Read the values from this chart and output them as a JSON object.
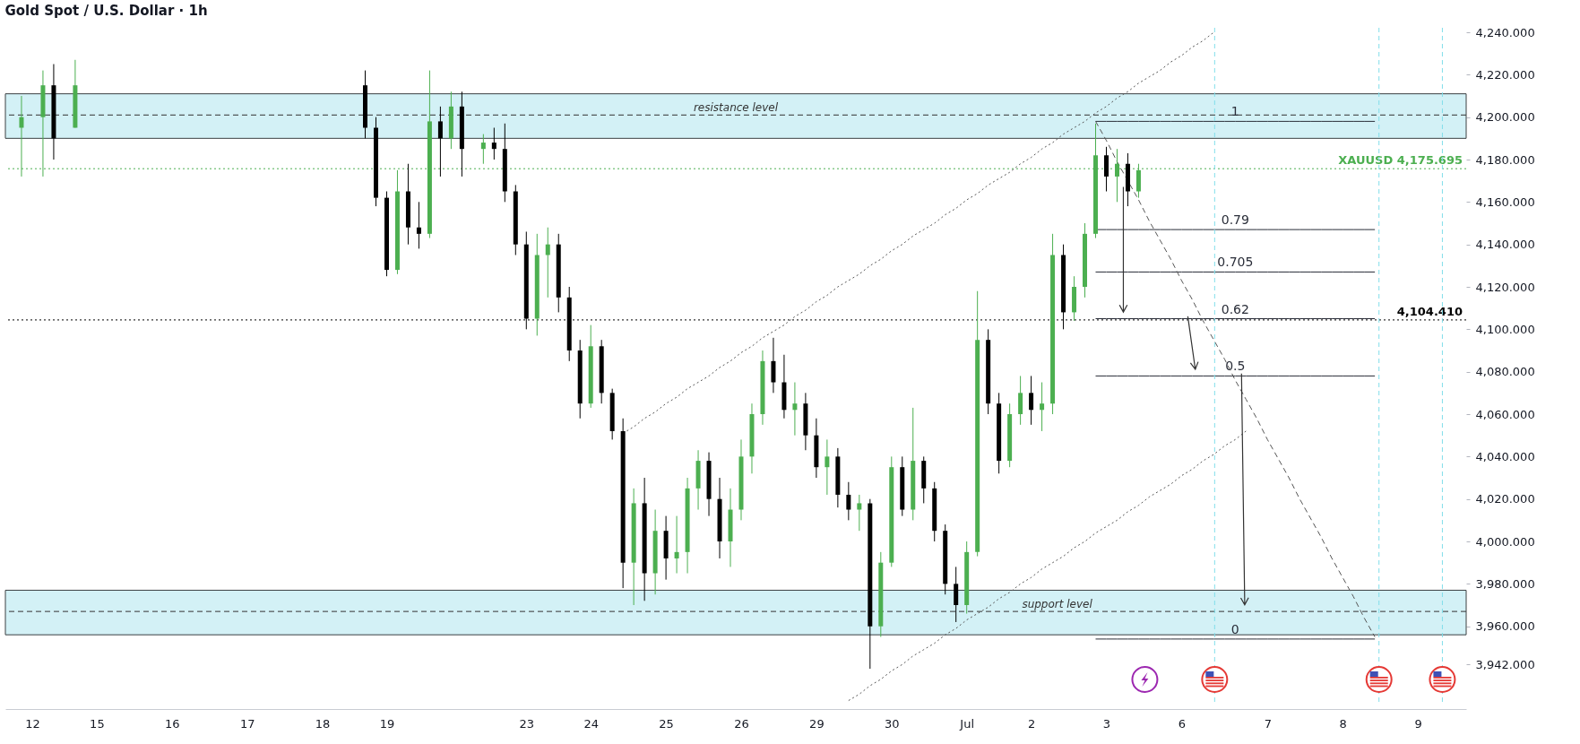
{
  "chart_data": {
    "type": "candlestick",
    "title": "Gold Spot / U.S. Dollar · 1h",
    "ylim": [
      3921,
      4240
    ],
    "yticks": [
      {
        "value": 3942,
        "label": "3,942.000"
      },
      {
        "value": 3960,
        "label": "3,960.000"
      },
      {
        "value": 3980,
        "label": "3,980.000"
      },
      {
        "value": 4000,
        "label": "4,000.000"
      },
      {
        "value": 4020,
        "label": "4,020.000"
      },
      {
        "value": 4040,
        "label": "4,040.000"
      },
      {
        "value": 4060,
        "label": "4,060.000"
      },
      {
        "value": 4080,
        "label": "4,080.000"
      },
      {
        "value": 4100,
        "label": "4,100.000"
      },
      {
        "value": 4120,
        "label": "4,120.000"
      },
      {
        "value": 4140,
        "label": "4,140.000"
      },
      {
        "value": 4160,
        "label": "4,160.000"
      },
      {
        "value": 4180,
        "label": "4,180.000"
      },
      {
        "value": 4200,
        "label": "4,200.000"
      },
      {
        "value": 4220,
        "label": "4,220.000"
      },
      {
        "value": 4240,
        "label": "4,240.000"
      }
    ],
    "categories": [
      null,
      null,
      "12",
      null,
      null,
      null,
      null,
      null,
      "15",
      null,
      null,
      null,
      null,
      null,
      null,
      "16",
      null,
      null,
      null,
      null,
      null,
      null,
      "17",
      null,
      null,
      null,
      null,
      null,
      null,
      "18",
      null,
      null,
      null,
      null,
      null,
      "19",
      null,
      null,
      null,
      null,
      null,
      null,
      null,
      null,
      null,
      null,
      null,
      null,
      "23",
      null,
      null,
      null,
      null,
      null,
      "24",
      null,
      null,
      null,
      null,
      null,
      null,
      "25",
      null,
      null,
      null,
      null,
      null,
      null,
      "26",
      null,
      null,
      null,
      null,
      null,
      null,
      "29",
      null,
      null,
      null,
      null,
      null,
      null,
      "30",
      null,
      null,
      null,
      null,
      null,
      null,
      "Jul",
      null,
      null,
      null,
      null,
      null,
      "2",
      null,
      null,
      null,
      null,
      null,
      null,
      "3",
      null,
      null,
      null,
      null,
      null,
      null,
      "6",
      null,
      null,
      null,
      null,
      null,
      null,
      null,
      "7",
      null,
      null,
      null,
      null,
      null,
      null,
      "8",
      null,
      null,
      null,
      null,
      null,
      null,
      "9",
      null,
      null,
      null,
      null
    ],
    "ohlc": [
      null,
      [
        4195,
        4210,
        4172,
        4200
      ],
      null,
      [
        4200,
        4222,
        4172,
        4215
      ],
      [
        4215,
        4225,
        4180,
        4190
      ],
      null,
      [
        4195,
        4227,
        4195,
        4215
      ],
      null,
      null,
      null,
      null,
      null,
      null,
      null,
      null,
      null,
      null,
      null,
      null,
      null,
      null,
      null,
      null,
      null,
      null,
      null,
      null,
      null,
      null,
      null,
      null,
      null,
      null,
      [
        4215,
        4222,
        4190,
        4195
      ],
      [
        4195,
        4200,
        4158,
        4162
      ],
      [
        4162,
        4165,
        4125,
        4128
      ],
      [
        4128,
        4175,
        4126,
        4165
      ],
      [
        4165,
        4178,
        4140,
        4148
      ],
      [
        4148,
        4160,
        4138,
        4145
      ],
      [
        4145,
        4222,
        4143,
        4198
      ],
      [
        4198,
        4205,
        4172,
        4190
      ],
      [
        4190,
        4212,
        4185,
        4205
      ],
      [
        4205,
        4212,
        4172,
        4185
      ],
      null,
      [
        4185,
        4192,
        4178,
        4188
      ],
      [
        4188,
        4195,
        4180,
        4185
      ],
      [
        4185,
        4197,
        4160,
        4165
      ],
      [
        4165,
        4168,
        4135,
        4140
      ],
      [
        4140,
        4146,
        4100,
        4105
      ],
      [
        4105,
        4145,
        4097,
        4135
      ],
      [
        4135,
        4148,
        4115,
        4140
      ],
      [
        4140,
        4145,
        4108,
        4115
      ],
      [
        4115,
        4120,
        4085,
        4090
      ],
      [
        4090,
        4095,
        4058,
        4065
      ],
      [
        4065,
        4102,
        4063,
        4092
      ],
      [
        4092,
        4095,
        4065,
        4070
      ],
      [
        4070,
        4072,
        4048,
        4052
      ],
      [
        4052,
        4058,
        3978,
        3990
      ],
      [
        3990,
        4025,
        3970,
        4018
      ],
      [
        4018,
        4030,
        3972,
        3985
      ],
      [
        3985,
        4015,
        3975,
        4005
      ],
      [
        4005,
        4012,
        3982,
        3992
      ],
      [
        3992,
        4012,
        3985,
        3995
      ],
      [
        3995,
        4030,
        3985,
        4025
      ],
      [
        4025,
        4043,
        4015,
        4038
      ],
      [
        4038,
        4042,
        4012,
        4020
      ],
      [
        4020,
        4030,
        3992,
        4000
      ],
      [
        4000,
        4025,
        3988,
        4015
      ],
      [
        4015,
        4048,
        4010,
        4040
      ],
      [
        4040,
        4065,
        4032,
        4060
      ],
      [
        4060,
        4090,
        4055,
        4085
      ],
      [
        4085,
        4096,
        4070,
        4075
      ],
      [
        4075,
        4088,
        4058,
        4062
      ],
      [
        4062,
        4075,
        4050,
        4065
      ],
      [
        4065,
        4070,
        4043,
        4050
      ],
      [
        4050,
        4058,
        4030,
        4035
      ],
      [
        4035,
        4048,
        4022,
        4040
      ],
      [
        4040,
        4044,
        4016,
        4022
      ],
      [
        4022,
        4028,
        4010,
        4015
      ],
      [
        4015,
        4022,
        4005,
        4018
      ],
      [
        4018,
        4020,
        3940,
        3960
      ],
      [
        3960,
        3995,
        3955,
        3990
      ],
      [
        3990,
        4040,
        3988,
        4035
      ],
      [
        4035,
        4040,
        4012,
        4015
      ],
      [
        4015,
        4063,
        4010,
        4038
      ],
      [
        4038,
        4040,
        4018,
        4025
      ],
      [
        4025,
        4028,
        4000,
        4005
      ],
      [
        4005,
        4008,
        3975,
        3980
      ],
      [
        3980,
        3988,
        3962,
        3970
      ],
      [
        3970,
        4000,
        3966,
        3995
      ],
      [
        3995,
        4118,
        3993,
        4095
      ],
      [
        4095,
        4100,
        4060,
        4065
      ],
      [
        4065,
        4070,
        4032,
        4038
      ],
      [
        4038,
        4065,
        4035,
        4060
      ],
      [
        4060,
        4078,
        4055,
        4070
      ],
      [
        4070,
        4078,
        4055,
        4062
      ],
      [
        4062,
        4075,
        4052,
        4065
      ],
      [
        4065,
        4145,
        4060,
        4135
      ],
      [
        4135,
        4140,
        4100,
        4108
      ],
      [
        4108,
        4125,
        4104,
        4120
      ],
      [
        4120,
        4150,
        4115,
        4145
      ],
      [
        4145,
        4197,
        4143,
        4182
      ],
      [
        4182,
        4186,
        4165,
        4172
      ],
      [
        4172,
        4185,
        4160,
        4178
      ],
      [
        4178,
        4183,
        4158,
        4165
      ],
      [
        4165,
        4178,
        4162,
        4175
      ],
      null,
      null,
      null,
      null,
      null,
      null,
      null,
      null,
      null,
      null,
      null,
      null,
      null,
      null,
      null,
      null,
      null,
      null,
      null,
      null,
      null,
      null,
      null,
      null,
      null,
      null,
      null,
      null,
      null,
      null
    ],
    "colors": [
      null,
      "#4caf50",
      null,
      "#4caf50",
      "#000000",
      null,
      "#4caf50",
      null,
      null,
      null,
      null,
      null,
      null,
      null,
      null,
      null,
      null,
      null,
      null,
      null,
      null,
      null,
      null,
      null,
      null,
      null,
      null,
      null,
      null,
      null,
      null,
      null,
      null,
      "#000000",
      "#000000",
      "#000000",
      "#4caf50",
      "#000000",
      "#000000",
      "#4caf50",
      "#000000",
      "#4caf50",
      "#000000",
      null,
      "#4caf50",
      "#000000",
      "#000000",
      "#000000",
      "#000000",
      "#4caf50",
      "#4caf50",
      "#000000",
      "#000000",
      "#000000",
      "#4caf50",
      "#000000",
      "#000000",
      "#000000",
      "#4caf50",
      "#000000",
      "#4caf50",
      "#000000",
      "#4caf50",
      "#4caf50",
      "#4caf50",
      "#000000",
      "#000000",
      "#4caf50",
      "#4caf50",
      "#4caf50",
      "#4caf50",
      "#000000",
      "#000000",
      "#4caf50",
      "#000000",
      "#000000",
      "#4caf50",
      "#000000",
      "#000000",
      "#4caf50",
      "#000000",
      "#4caf50",
      "#4caf50",
      "#000000",
      "#4caf50",
      "#000000",
      "#000000",
      "#000000",
      "#000000",
      "#4caf50",
      "#4caf50",
      "#000000",
      "#000000",
      "#4caf50",
      "#4caf50",
      "#000000",
      "#4caf50",
      "#4caf50",
      "#000000",
      "#4caf50",
      "#4caf50",
      "#4caf50",
      "#000000",
      "#4caf50",
      "#000000",
      "#4caf50",
      null,
      null,
      null,
      null,
      null,
      null,
      null,
      null,
      null,
      null,
      null,
      null,
      null,
      null,
      null,
      null,
      null,
      null,
      null,
      null,
      null,
      null,
      null,
      null,
      null,
      null,
      null,
      null,
      null,
      null
    ],
    "series": [
      {
        "type": "line",
        "name": "1",
        "color": "#2a2e39",
        "values": [
          null,
          null,
          null,
          null,
          null,
          null,
          null,
          null,
          null,
          null,
          null,
          null,
          null,
          null,
          null,
          null,
          null,
          null,
          null,
          null,
          null,
          null,
          null,
          null,
          null,
          null,
          null,
          null,
          null,
          null,
          null,
          null,
          null,
          null,
          null,
          null,
          null,
          null,
          null,
          null,
          null,
          null,
          null,
          null,
          null,
          null,
          null,
          null,
          null,
          null,
          null,
          null,
          null,
          null,
          null,
          null,
          null,
          null,
          null,
          null,
          null,
          null,
          null,
          null,
          null,
          null,
          null,
          null,
          null,
          null,
          null,
          null,
          null,
          null,
          null,
          null,
          null,
          null,
          null,
          null,
          null,
          null,
          null,
          null,
          null,
          null,
          null,
          null,
          null,
          null,
          null,
          null,
          null,
          null,
          null,
          null,
          null,
          null,
          null,
          null,
          null,
          4198,
          4198,
          4198,
          4198,
          4198,
          4198,
          4198,
          4198,
          4198,
          4198,
          4198,
          4198,
          4198,
          4198,
          4198,
          4198,
          4198,
          4198,
          4198,
          4198,
          4198,
          4198,
          4198,
          4198,
          4198,
          4198,
          4198,
          null,
          null,
          null,
          null,
          null,
          null,
          null,
          null
        ]
      },
      {
        "type": "line",
        "name": "0.79",
        "color": "#2a2e39",
        "values": [
          null,
          null,
          null,
          null,
          null,
          null,
          null,
          null,
          null,
          null,
          null,
          null,
          null,
          null,
          null,
          null,
          null,
          null,
          null,
          null,
          null,
          null,
          null,
          null,
          null,
          null,
          null,
          null,
          null,
          null,
          null,
          null,
          null,
          null,
          null,
          null,
          null,
          null,
          null,
          null,
          null,
          null,
          null,
          null,
          null,
          null,
          null,
          null,
          null,
          null,
          null,
          null,
          null,
          null,
          null,
          null,
          null,
          null,
          null,
          null,
          null,
          null,
          null,
          null,
          null,
          null,
          null,
          null,
          null,
          null,
          null,
          null,
          null,
          null,
          null,
          null,
          null,
          null,
          null,
          null,
          null,
          null,
          null,
          null,
          null,
          null,
          null,
          null,
          null,
          null,
          null,
          null,
          null,
          null,
          null,
          null,
          null,
          null,
          null,
          null,
          null,
          4147,
          4147,
          4147,
          4147,
          4147,
          4147,
          4147,
          4147,
          4147,
          4147,
          4147,
          4147,
          4147,
          4147,
          4147,
          4147,
          4147,
          4147,
          4147,
          4147,
          4147,
          4147,
          4147,
          4147,
          4147,
          4147,
          4147,
          null,
          null,
          null,
          null,
          null,
          null,
          null,
          null
        ]
      },
      {
        "type": "line",
        "name": "0.705",
        "color": "#2a2e39",
        "values": [
          null,
          null,
          null,
          null,
          null,
          null,
          null,
          null,
          null,
          null,
          null,
          null,
          null,
          null,
          null,
          null,
          null,
          null,
          null,
          null,
          null,
          null,
          null,
          null,
          null,
          null,
          null,
          null,
          null,
          null,
          null,
          null,
          null,
          null,
          null,
          null,
          null,
          null,
          null,
          null,
          null,
          null,
          null,
          null,
          null,
          null,
          null,
          null,
          null,
          null,
          null,
          null,
          null,
          null,
          null,
          null,
          null,
          null,
          null,
          null,
          null,
          null,
          null,
          null,
          null,
          null,
          null,
          null,
          null,
          null,
          null,
          null,
          null,
          null,
          null,
          null,
          null,
          null,
          null,
          null,
          null,
          null,
          null,
          null,
          null,
          null,
          null,
          null,
          null,
          null,
          null,
          null,
          null,
          null,
          null,
          null,
          null,
          null,
          null,
          null,
          null,
          4127,
          4127,
          4127,
          4127,
          4127,
          4127,
          4127,
          4127,
          4127,
          4127,
          4127,
          4127,
          4127,
          4127,
          4127,
          4127,
          4127,
          4127,
          4127,
          4127,
          4127,
          4127,
          4127,
          4127,
          4127,
          4127,
          4127,
          null,
          null,
          null,
          null,
          null,
          null,
          null,
          null
        ]
      },
      {
        "type": "line",
        "name": "0.62",
        "color": "#2a2e39",
        "values": [
          null,
          null,
          null,
          null,
          null,
          null,
          null,
          null,
          null,
          null,
          null,
          null,
          null,
          null,
          null,
          null,
          null,
          null,
          null,
          null,
          null,
          null,
          null,
          null,
          null,
          null,
          null,
          null,
          null,
          null,
          null,
          null,
          null,
          null,
          null,
          null,
          null,
          null,
          null,
          null,
          null,
          null,
          null,
          null,
          null,
          null,
          null,
          null,
          null,
          null,
          null,
          null,
          null,
          null,
          null,
          null,
          null,
          null,
          null,
          null,
          null,
          null,
          null,
          null,
          null,
          null,
          null,
          null,
          null,
          null,
          null,
          null,
          null,
          null,
          null,
          null,
          null,
          null,
          null,
          null,
          null,
          null,
          null,
          null,
          null,
          null,
          null,
          null,
          null,
          null,
          null,
          null,
          null,
          null,
          null,
          null,
          null,
          null,
          null,
          null,
          null,
          4105,
          4105,
          4105,
          4105,
          4105,
          4105,
          4105,
          4105,
          4105,
          4105,
          4105,
          4105,
          4105,
          4105,
          4105,
          4105,
          4105,
          4105,
          4105,
          4105,
          4105,
          4105,
          4105,
          4105,
          4105,
          4105,
          4105,
          null,
          null,
          null,
          null,
          null,
          null,
          null,
          null
        ]
      },
      {
        "type": "line",
        "name": "0.5",
        "color": "#2a2e39",
        "values": [
          null,
          null,
          null,
          null,
          null,
          null,
          null,
          null,
          null,
          null,
          null,
          null,
          null,
          null,
          null,
          null,
          null,
          null,
          null,
          null,
          null,
          null,
          null,
          null,
          null,
          null,
          null,
          null,
          null,
          null,
          null,
          null,
          null,
          null,
          null,
          null,
          null,
          null,
          null,
          null,
          null,
          null,
          null,
          null,
          null,
          null,
          null,
          null,
          null,
          null,
          null,
          null,
          null,
          null,
          null,
          null,
          null,
          null,
          null,
          null,
          null,
          null,
          null,
          null,
          null,
          null,
          null,
          null,
          null,
          null,
          null,
          null,
          null,
          null,
          null,
          null,
          null,
          null,
          null,
          null,
          null,
          null,
          null,
          null,
          null,
          null,
          null,
          null,
          null,
          null,
          null,
          null,
          null,
          null,
          null,
          null,
          null,
          null,
          null,
          null,
          null,
          4078,
          4078,
          4078,
          4078,
          4078,
          4078,
          4078,
          4078,
          4078,
          4078,
          4078,
          4078,
          4078,
          4078,
          4078,
          4078,
          4078,
          4078,
          4078,
          4078,
          4078,
          4078,
          4078,
          4078,
          4078,
          4078,
          4078,
          null,
          null,
          null,
          null,
          null,
          null,
          null,
          null
        ]
      },
      {
        "type": "line",
        "name": "0",
        "color": "#2a2e39",
        "values": [
          null,
          null,
          null,
          null,
          null,
          null,
          null,
          null,
          null,
          null,
          null,
          null,
          null,
          null,
          null,
          null,
          null,
          null,
          null,
          null,
          null,
          null,
          null,
          null,
          null,
          null,
          null,
          null,
          null,
          null,
          null,
          null,
          null,
          null,
          null,
          null,
          null,
          null,
          null,
          null,
          null,
          null,
          null,
          null,
          null,
          null,
          null,
          null,
          null,
          null,
          null,
          null,
          null,
          null,
          null,
          null,
          null,
          null,
          null,
          null,
          null,
          null,
          null,
          null,
          null,
          null,
          null,
          null,
          null,
          null,
          null,
          null,
          null,
          null,
          null,
          null,
          null,
          null,
          null,
          null,
          null,
          null,
          null,
          null,
          null,
          null,
          null,
          null,
          null,
          null,
          null,
          null,
          null,
          null,
          null,
          null,
          null,
          null,
          null,
          null,
          null,
          3954,
          3954,
          3954,
          3954,
          3954,
          3954,
          3954,
          3954,
          3954,
          3954,
          3954,
          3954,
          3954,
          3954,
          3954,
          3954,
          3954,
          3954,
          3954,
          3954,
          3954,
          3954,
          3954,
          3954,
          3954,
          3954,
          3954,
          null,
          null,
          null,
          null,
          null,
          null,
          null,
          null
        ]
      },
      {
        "type": "line",
        "color": "#555555",
        "line_style": "dotted",
        "values": [
          null,
          null,
          null,
          null,
          null,
          null,
          null,
          null,
          null,
          null,
          null,
          null,
          null,
          null,
          null,
          null,
          null,
          null,
          null,
          null,
          null,
          null,
          null,
          null,
          null,
          null,
          null,
          null,
          null,
          null,
          null,
          null,
          null,
          null,
          null,
          null,
          null,
          null,
          null,
          null,
          null,
          null,
          null,
          null,
          null,
          null,
          null,
          null,
          null,
          null,
          null,
          null,
          null,
          null,
          null,
          null,
          null,
          4051,
          4054,
          4058,
          4061,
          4065,
          4068,
          4072,
          4075,
          4078,
          4082,
          4085,
          4089,
          4092,
          4096,
          4099,
          4102,
          4106,
          4109,
          4113,
          4116,
          4120,
          4123,
          4126,
          4130,
          4133,
          4137,
          4140,
          4144,
          4147,
          4150,
          4154,
          4157,
          4161,
          4164,
          4168,
          4171,
          4174,
          4178,
          4181,
          4185,
          4188,
          4192,
          4195,
          4198,
          4202,
          4205,
          4209,
          4212,
          4216,
          4219,
          4222,
          4226,
          4229,
          4233,
          4236,
          4240,
          null,
          null,
          null,
          null,
          null,
          null,
          null,
          null,
          null,
          null,
          null,
          null,
          null,
          null,
          null,
          null,
          null,
          null,
          null,
          null,
          null,
          null,
          null
        ]
      },
      {
        "type": "line",
        "color": "#555555",
        "line_style": "dotted",
        "values": [
          null,
          null,
          null,
          null,
          null,
          null,
          null,
          null,
          null,
          null,
          null,
          null,
          null,
          null,
          null,
          null,
          null,
          null,
          null,
          null,
          null,
          null,
          null,
          null,
          null,
          null,
          null,
          null,
          null,
          null,
          null,
          null,
          null,
          null,
          null,
          null,
          null,
          null,
          null,
          null,
          null,
          null,
          null,
          null,
          null,
          null,
          null,
          null,
          null,
          null,
          null,
          null,
          null,
          null,
          null,
          null,
          null,
          null,
          null,
          null,
          null,
          null,
          null,
          null,
          null,
          null,
          null,
          null,
          null,
          null,
          null,
          null,
          null,
          null,
          null,
          null,
          null,
          null,
          3925,
          3928,
          3932,
          3935,
          3939,
          3942,
          3946,
          3949,
          3952,
          3956,
          3959,
          3963,
          3966,
          3969,
          3973,
          3976,
          3980,
          3983,
          3987,
          3990,
          3993,
          3997,
          4000,
          4004,
          4007,
          4010,
          4014,
          4017,
          4021,
          4024,
          4027,
          4031,
          4034,
          4038,
          4041,
          4045,
          4048,
          4052,
          null,
          null,
          null,
          null,
          null,
          null,
          null,
          null,
          null,
          null,
          null,
          null,
          null,
          null,
          null,
          null,
          null,
          null,
          null,
          null
        ]
      },
      {
        "type": "line",
        "color": "#555555",
        "line_style": "dashed",
        "values": [
          null,
          null,
          null,
          null,
          null,
          null,
          null,
          null,
          null,
          null,
          null,
          null,
          null,
          null,
          null,
          null,
          null,
          null,
          null,
          null,
          null,
          null,
          null,
          null,
          null,
          null,
          null,
          null,
          null,
          null,
          null,
          null,
          null,
          null,
          null,
          null,
          null,
          null,
          null,
          null,
          null,
          null,
          null,
          null,
          null,
          null,
          null,
          null,
          null,
          null,
          null,
          null,
          null,
          null,
          null,
          null,
          null,
          null,
          null,
          null,
          null,
          null,
          null,
          null,
          null,
          null,
          null,
          null,
          null,
          null,
          null,
          null,
          null,
          null,
          null,
          null,
          null,
          null,
          null,
          null,
          null,
          null,
          null,
          null,
          null,
          null,
          null,
          null,
          null,
          null,
          null,
          null,
          null,
          null,
          null,
          null,
          null,
          null,
          null,
          null,
          null,
          4198,
          4189,
          4179,
          4170,
          4161,
          4151,
          4142,
          4133,
          4123,
          4114,
          4104,
          4095,
          4086,
          4076,
          4067,
          4058,
          4048,
          4039,
          4030,
          4020,
          4011,
          4002,
          3992,
          3983,
          3974,
          3964,
          3955,
          null,
          null,
          null,
          null,
          null,
          null,
          null,
          null
        ]
      }
    ],
    "bands": [
      {
        "axis": "y",
        "from": 4190,
        "to": 4211,
        "color": "#d3f1f6"
      },
      {
        "axis": "y",
        "from": 3956,
        "to": 3977,
        "color": "#d3f1f6"
      }
    ],
    "ref_lines": [
      {
        "axis": "y",
        "value": 4201,
        "label": "resistance level",
        "line_style": "dashed",
        "color": "#333333"
      },
      {
        "axis": "y",
        "value": 3967,
        "label": "support level",
        "line_style": "dashed",
        "color": "#333333"
      },
      {
        "axis": "y",
        "value": 4175.695,
        "label": "XAUUSD 4,175.695",
        "line_style": "dotted",
        "color": "#4caf50"
      },
      {
        "axis": "y",
        "value": 4104.41,
        "label": "4,104.410",
        "line_style": "dotted",
        "color": "#000000"
      }
    ],
    "grid": false
  }
}
